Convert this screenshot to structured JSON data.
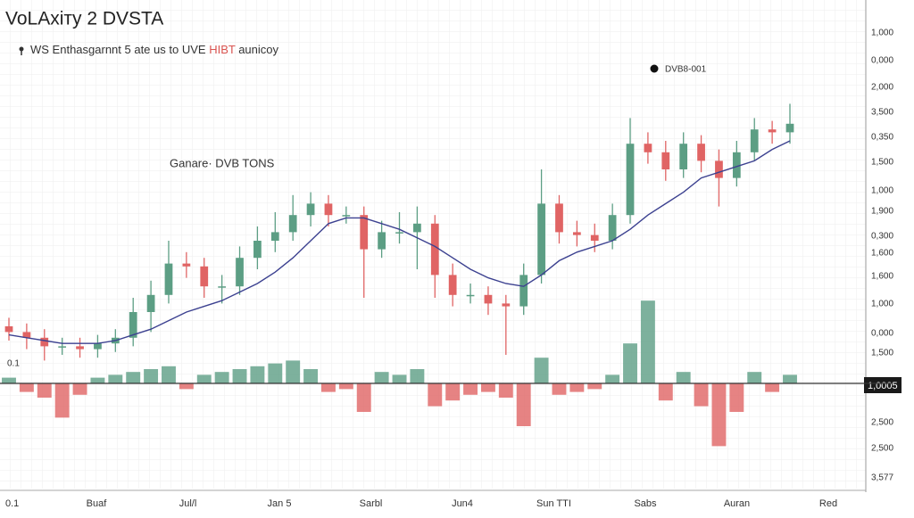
{
  "chart_data": {
    "type": "candlestick",
    "title": "VoLAxiтy 2 DVSTA",
    "subtitle": [
      "WS Enthasgarnnt 5 ate us to UVE",
      "HIBT",
      "aunicoy"
    ],
    "annotation": "Ganare· DVB TONS",
    "legend_label": "DVB8-001",
    "corner_labels": [
      "0.1",
      "0.1"
    ],
    "x_labels": [
      "Buaf",
      "Jul/l",
      "Jan 5",
      "Sarbl",
      "Jun4",
      "Sun TTI",
      "Sabs",
      "Auran",
      "Red"
    ],
    "y_labels": [
      "1,000",
      "0,000",
      "2,000",
      "3,500",
      "0,350",
      "1,500",
      "1,000",
      "1,900",
      "0,300",
      "1,600",
      "1,600",
      "1,000",
      "0,000",
      "1,500",
      "1,0005",
      "2,500",
      "2,500",
      "3,577"
    ],
    "highlight_label_index": 14,
    "ylim": [
      -37.5,
      100
    ],
    "grid": true,
    "up_color": "#5c9e84",
    "down_color": "#e06464",
    "open": [
      20,
      18,
      16,
      13,
      13,
      12,
      14,
      16,
      25,
      31,
      42,
      41,
      34,
      34,
      44,
      50,
      53,
      59,
      63,
      59,
      59,
      47,
      53,
      53,
      56,
      38,
      31,
      31,
      28,
      27,
      38,
      63,
      53,
      52,
      50,
      59,
      84,
      81,
      75,
      84,
      78,
      72,
      81,
      89,
      88
    ],
    "high": [
      23,
      21,
      19,
      16,
      16,
      17,
      19,
      30,
      36,
      50,
      46,
      44,
      38,
      48,
      55,
      60,
      66,
      67,
      66,
      62,
      62,
      57,
      60,
      62,
      59,
      42,
      35,
      34,
      31,
      42,
      75,
      66,
      57,
      56,
      63,
      93,
      88,
      85,
      88,
      87,
      82,
      85,
      93,
      92,
      98
    ],
    "low": [
      15,
      12,
      8,
      10,
      9,
      9,
      11,
      13,
      18,
      28,
      37,
      30,
      28,
      31,
      40,
      46,
      50,
      55,
      55,
      56,
      30,
      44,
      49,
      40,
      30,
      27,
      28,
      24,
      10,
      24,
      35,
      49,
      48,
      46,
      47,
      56,
      77,
      71,
      72,
      74,
      62,
      69,
      78,
      84,
      84
    ],
    "close": [
      18,
      16,
      13,
      13,
      12,
      14,
      16,
      25,
      31,
      42,
      41,
      34,
      34,
      44,
      50,
      53,
      59,
      63,
      59,
      59,
      47,
      53,
      53,
      56,
      38,
      31,
      31,
      28,
      27,
      38,
      63,
      53,
      52,
      50,
      59,
      84,
      81,
      75,
      84,
      78,
      72,
      81,
      89,
      88,
      91
    ],
    "ma": {
      "color": "#3c4190",
      "values": [
        17,
        16,
        15,
        14,
        14,
        14,
        15,
        17,
        19,
        22,
        25,
        27,
        29,
        32,
        35,
        39,
        44,
        50,
        56,
        58,
        58,
        56,
        54,
        51,
        48,
        44,
        40,
        37,
        35,
        34,
        38,
        43,
        46,
        48,
        50,
        54,
        59,
        63,
        67,
        72,
        74,
        76,
        78,
        82,
        85
      ]
    },
    "histogram": [
      2,
      -3,
      -5,
      -12,
      -4,
      2,
      3,
      4,
      5,
      6,
      -2,
      3,
      4,
      5,
      6,
      7,
      8,
      5,
      -3,
      -2,
      -10,
      4,
      3,
      5,
      -8,
      -6,
      -4,
      -3,
      -5,
      -15,
      9,
      -4,
      -3,
      -2,
      3,
      14,
      29,
      -6,
      4,
      -8,
      -22,
      -10,
      4,
      -3,
      3
    ]
  }
}
